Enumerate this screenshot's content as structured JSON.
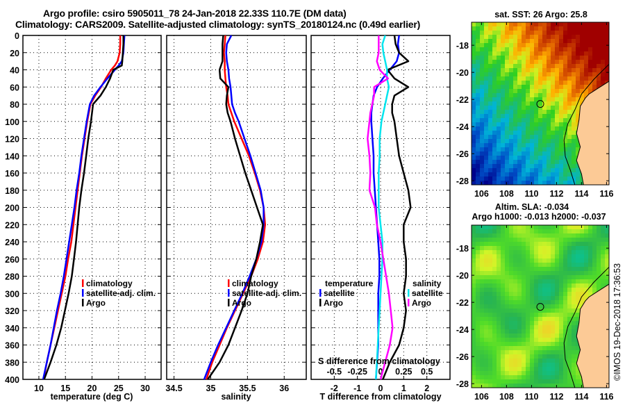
{
  "title": {
    "line1": "Argo profile: csiro 5905011_78 24-Jan-2018 22.33S 110.7E (DM data)",
    "line2": "Climatology: CARS2009. Satellite-adjusted climatology: synTS_20180124.nc (0.49d earlier)"
  },
  "chart_data": [
    {
      "type": "line",
      "name": "temperature-profile",
      "xlabel": "temperature (deg C)",
      "ylabel": "",
      "xlim": [
        7,
        33
      ],
      "ylim": [
        400,
        0
      ],
      "xticks": [
        "10",
        "15",
        "20",
        "25",
        "30"
      ],
      "xtick_values": [
        10,
        15,
        20,
        25,
        30
      ],
      "yticks": [
        "0",
        "20",
        "40",
        "60",
        "80",
        "100",
        "120",
        "140",
        "160",
        "180",
        "200",
        "220",
        "240",
        "260",
        "280",
        "300",
        "320",
        "340",
        "360",
        "380",
        "400"
      ],
      "ytick_values": [
        0,
        20,
        40,
        60,
        80,
        100,
        120,
        140,
        160,
        180,
        200,
        220,
        240,
        260,
        280,
        300,
        320,
        340,
        360,
        380,
        400
      ],
      "grid": true,
      "legend": {
        "placement": "lower-right-center",
        "entries": [
          "climatology",
          "satellite-adj. clim.",
          "Argo"
        ]
      },
      "depth": [
        0,
        10,
        20,
        30,
        35,
        40,
        50,
        60,
        70,
        80,
        100,
        120,
        140,
        160,
        180,
        200,
        220,
        240,
        260,
        280,
        300,
        320,
        340,
        360,
        380,
        400
      ],
      "series": [
        {
          "name": "climatology",
          "color": "#ff0000",
          "values": [
            25.3,
            25.3,
            25.2,
            24.8,
            24.3,
            23.6,
            22.6,
            21.7,
            20.6,
            19.7,
            19.1,
            18.6,
            18.1,
            17.7,
            17.3,
            16.9,
            16.5,
            16.1,
            15.5,
            15.0,
            14.3,
            13.6,
            12.9,
            12.2,
            11.5,
            10.9
          ]
        },
        {
          "name": "satellite-adj. clim.",
          "color": "#0000ff",
          "values": [
            26.1,
            26.0,
            25.9,
            25.6,
            25.0,
            24.3,
            22.9,
            21.6,
            20.4,
            19.6,
            19.0,
            18.5,
            18.0,
            17.6,
            17.1,
            16.7,
            16.2,
            15.7,
            15.2,
            14.7,
            14.1,
            13.4,
            12.8,
            12.2,
            11.5,
            10.8
          ]
        },
        {
          "name": "Argo",
          "color": "#000000",
          "values": [
            25.9,
            25.9,
            25.8,
            25.7,
            25.6,
            24.0,
            23.4,
            22.6,
            21.6,
            20.2,
            19.8,
            19.3,
            18.9,
            18.5,
            18.0,
            17.6,
            17.3,
            17.0,
            16.6,
            16.2,
            15.6,
            14.9,
            14.2,
            13.3,
            12.2,
            11.0
          ]
        }
      ]
    },
    {
      "type": "line",
      "name": "salinity-profile",
      "xlabel": "salinity",
      "xlim": [
        34.4,
        36.3
      ],
      "ylim": [
        400,
        0
      ],
      "xticks": [
        "34.5",
        "35",
        "35.5",
        "36"
      ],
      "xtick_values": [
        34.5,
        35,
        35.5,
        36
      ],
      "grid": true,
      "legend": {
        "placement": "lower-center",
        "entries": [
          "climatology",
          "satellite-adj. clim.",
          "Argo"
        ]
      },
      "depth": [
        0,
        10,
        20,
        30,
        40,
        50,
        60,
        70,
        80,
        90,
        100,
        120,
        140,
        160,
        180,
        200,
        220,
        240,
        260,
        280,
        300,
        320,
        340,
        360,
        380,
        400
      ],
      "series": [
        {
          "name": "climatology",
          "color": "#ff0000",
          "values": [
            35.2,
            35.19,
            35.18,
            35.19,
            35.19,
            35.2,
            35.21,
            35.23,
            35.24,
            35.28,
            35.32,
            35.42,
            35.52,
            35.6,
            35.67,
            35.72,
            35.74,
            35.71,
            35.64,
            35.55,
            35.44,
            35.33,
            35.22,
            35.12,
            35.02,
            34.94
          ]
        },
        {
          "name": "satellite-adj. clim.",
          "color": "#0000ff",
          "values": [
            35.28,
            35.22,
            35.21,
            35.22,
            35.24,
            35.25,
            35.27,
            35.28,
            35.29,
            35.33,
            35.38,
            35.46,
            35.54,
            35.61,
            35.68,
            35.72,
            35.72,
            35.69,
            35.62,
            35.53,
            35.43,
            35.32,
            35.21,
            35.1,
            35.0,
            34.91
          ]
        },
        {
          "name": "Argo",
          "color": "#000000",
          "values": [
            35.17,
            35.16,
            35.16,
            35.16,
            35.12,
            35.13,
            35.24,
            35.22,
            35.21,
            35.23,
            35.27,
            35.33,
            35.4,
            35.47,
            35.55,
            35.63,
            35.71,
            35.67,
            35.62,
            35.55,
            35.5,
            35.42,
            35.33,
            35.24,
            35.12,
            34.96
          ]
        }
      ]
    },
    {
      "type": "line",
      "name": "difference-profile",
      "xlabel": "T difference from climatology",
      "xlabel2": "S difference from climatology",
      "xlim": [
        -3,
        3
      ],
      "xlim2": [
        -0.75,
        0.75
      ],
      "ylim": [
        400,
        0
      ],
      "xticks": [
        "-2",
        "-1",
        "0",
        "1",
        "2"
      ],
      "xtick_values": [
        -2,
        -1,
        0,
        1,
        2
      ],
      "xticks2": [
        "-0.5",
        "-0.25",
        "0",
        "0.25",
        "0.5"
      ],
      "xtick_values2": [
        -0.5,
        -0.25,
        0,
        0.25,
        0.5
      ],
      "grid": true,
      "legend": {
        "placement": "lower-center",
        "temperature_header": "temperature",
        "temperature_entries": [
          "satellite",
          "Argo"
        ],
        "salinity_header": "salinity",
        "salinity_entries": [
          "satellite",
          "Argo"
        ]
      },
      "depth": [
        0,
        10,
        20,
        30,
        40,
        50,
        60,
        70,
        80,
        90,
        100,
        120,
        140,
        160,
        180,
        200,
        220,
        240,
        260,
        280,
        300,
        320,
        340,
        360,
        380,
        400
      ],
      "series": [
        {
          "name": "T satellite",
          "color": "#0000ff",
          "values": [
            0.8,
            0.75,
            0.8,
            0.7,
            0.4,
            0.1,
            -0.15,
            -0.3,
            -0.35,
            -0.4,
            -0.4,
            -0.35,
            -0.3,
            -0.3,
            -0.25,
            -0.2,
            -0.15,
            -0.1,
            -0.05,
            -0.05,
            -0.1,
            -0.1,
            -0.1,
            -0.1,
            -0.15,
            -0.2
          ]
        },
        {
          "name": "T Argo",
          "color": "#000000",
          "values": [
            0.6,
            0.65,
            0.8,
            1.2,
            0.3,
            0.6,
            1.2,
            0.6,
            0.5,
            0.5,
            0.6,
            0.7,
            0.8,
            1.0,
            1.2,
            1.3,
            1.0,
            1.0,
            1.1,
            1.1,
            1.0,
            1.1,
            1.0,
            0.8,
            0.4,
            0.1
          ]
        },
        {
          "name": "S satellite",
          "color": "#00e5ee",
          "values": [
            0.05,
            0.02,
            0.03,
            0.05,
            0.07,
            0.07,
            0.09,
            0.07,
            0.05,
            0.03,
            0.01,
            -0.01,
            -0.01,
            -0.02,
            -0.02,
            -0.02,
            0.0,
            0.02,
            0.02,
            0.01,
            0.0,
            -0.01,
            -0.02,
            -0.03,
            -0.04,
            -0.05
          ]
        },
        {
          "name": "S Argo",
          "color": "#ff00ff",
          "values": [
            -0.02,
            -0.02,
            -0.02,
            -0.04,
            -0.01,
            0.08,
            -0.07,
            -0.07,
            -0.09,
            -0.11,
            -0.12,
            -0.14,
            -0.12,
            -0.11,
            -0.12,
            -0.06,
            -0.04,
            0.0,
            0.03,
            0.06,
            0.09,
            0.11,
            0.13,
            0.1,
            0.05,
            0.0
          ]
        }
      ]
    }
  ],
  "maps": [
    {
      "name": "sst-map",
      "title": "sat. SST: 26 Argo: 25.8",
      "lon_ticks": [
        "106",
        "108",
        "110",
        "112",
        "114",
        "116"
      ],
      "lat_ticks": [
        "-18",
        "-20",
        "-22",
        "-24",
        "-26",
        "-28"
      ],
      "argo_position": {
        "lon": 110.7,
        "lat": -22.33
      }
    },
    {
      "name": "sla-map",
      "title": "Altim. SLA: -0.034",
      "subtitle": "Argo h1000: -0.013 h2000: -0.037",
      "lon_ticks": [
        "106",
        "108",
        "110",
        "112",
        "114",
        "116"
      ],
      "lat_ticks": [
        "-18",
        "-20",
        "-22",
        "-24",
        "-26",
        "-28"
      ],
      "argo_position": {
        "lon": 110.7,
        "lat": -22.33
      }
    }
  ],
  "credit": "©IMOS 19-Dec-2018 17:36:53"
}
